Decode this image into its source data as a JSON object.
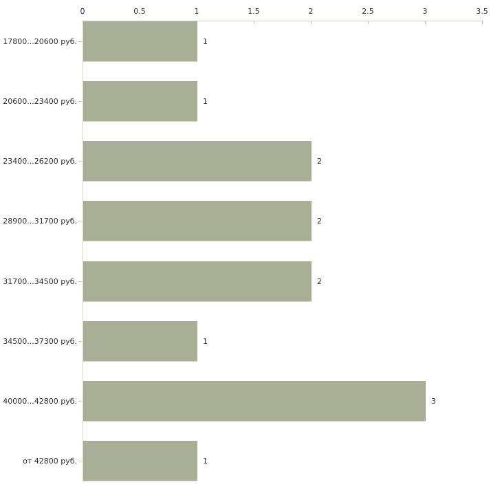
{
  "chart_data": {
    "type": "bar",
    "orientation": "horizontal",
    "title": "",
    "xlabel": "",
    "ylabel": "",
    "legend": "none",
    "grid": false,
    "x_axis_position": "top",
    "xlim": [
      0,
      3.5
    ],
    "x_ticks": [
      "0",
      "0.5",
      "1",
      "1.5",
      "2",
      "2.5",
      "3",
      "3.5"
    ],
    "categories": [
      "17800...20600 руб.",
      "20600...23400 руб.",
      "23400...26200 руб.",
      "28900...31700 руб.",
      "31700...34500 руб.",
      "34500...37300 руб.",
      "40000...42800 руб.",
      "от 42800 руб."
    ],
    "values": [
      1,
      1,
      2,
      2,
      2,
      1,
      3,
      1
    ],
    "colors": {
      "bar": "#a9ae97",
      "axis": "#d4d4c6",
      "tick": "#c6c6ae",
      "text": "#2e2e2e",
      "background": "#ffffff"
    }
  }
}
